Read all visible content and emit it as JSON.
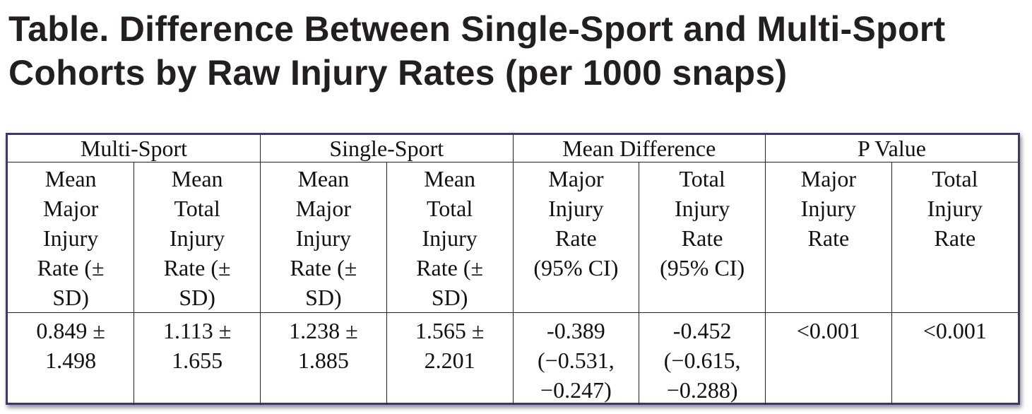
{
  "title": "Table. Difference Between Single-Sport and Multi-Sport Cohorts by Raw Injury Rates (per 1000 snaps)",
  "table": {
    "groups": [
      {
        "label": "Multi-Sport"
      },
      {
        "label": "Single-Sport"
      },
      {
        "label": "Mean Difference"
      },
      {
        "label": "P Value"
      }
    ],
    "subheaders": [
      "Mean\nMajor\nInjury\nRate (±\nSD)",
      "Mean\nTotal\nInjury\nRate (±\nSD)",
      "Mean\nMajor\nInjury\nRate (±\nSD)",
      "Mean\nTotal\nInjury\nRate (±\nSD)",
      "Major\nInjury\nRate\n(95% CI)",
      "Total\nInjury\nRate\n(95% CI)",
      "Major\nInjury\nRate",
      "Total\nInjury\nRate"
    ],
    "values": [
      "0.849 ±\n1.498",
      "1.113 ±\n1.655",
      "1.238 ±\n1.885",
      "1.565 ±\n2.201",
      "-0.389\n(−0.531,\n−0.247)",
      "-0.452\n(−0.615,\n−0.288)",
      "<0.001",
      "<0.001"
    ]
  }
}
